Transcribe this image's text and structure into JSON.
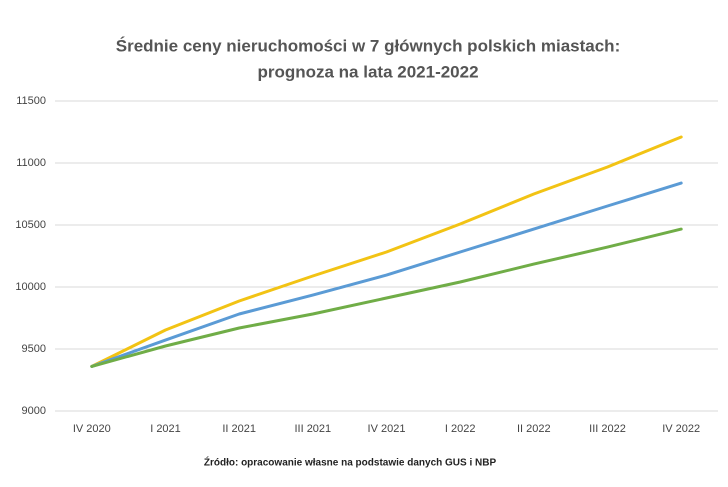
{
  "chart_data": {
    "type": "line",
    "title": [
      "Średnie ceny nieruchomości w 7 głównych polskich miastach:",
      "prognoza na lata 2021-2022"
    ],
    "annotation": "Źródło: opracowanie własne na podstawie danych GUS i NBP",
    "categories": [
      "IV 2020",
      "I 2021",
      "II 2021",
      "III 2021",
      "IV 2021",
      "I 2022",
      "II 2022",
      "III 2022",
      "IV 2022"
    ],
    "series": [
      {
        "color": "#f2c314",
        "values": [
          9360,
          9653,
          9887,
          10089,
          10282,
          10508,
          10750,
          10968,
          11210
        ]
      },
      {
        "color": "#5b9bd5",
        "values": [
          9360,
          9572,
          9782,
          9935,
          10096,
          10282,
          10467,
          10653,
          10838
        ]
      },
      {
        "color": "#70ad47",
        "values": [
          9360,
          9524,
          9669,
          9782,
          9911,
          10040,
          10185,
          10322,
          10467
        ]
      }
    ],
    "ylim": [
      9000,
      11500
    ],
    "yticks": [
      9000,
      9500,
      10000,
      10500,
      11000,
      11500
    ],
    "grid": true
  }
}
